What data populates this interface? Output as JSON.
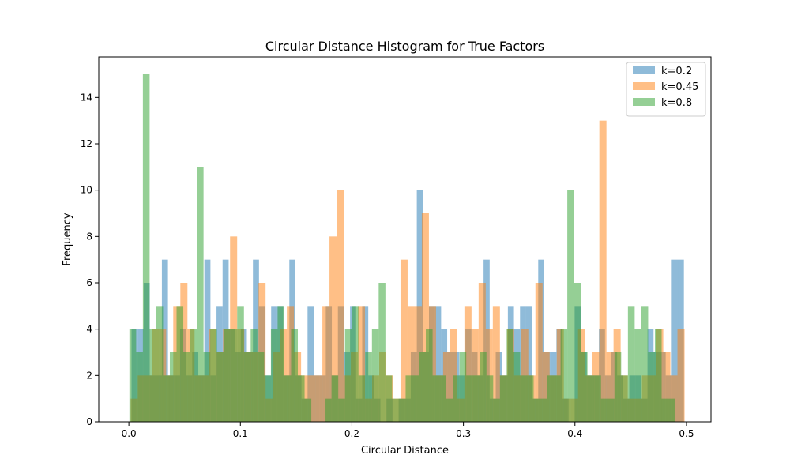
{
  "chart_data": {
    "type": "histogram",
    "title": "Circular Distance Histogram for True Factors",
    "xlabel": "Circular Distance",
    "ylabel": "Frequency",
    "xlim": [
      -0.027,
      0.522
    ],
    "ylim": [
      0,
      15.75
    ],
    "xticks": [
      0.0,
      0.1,
      0.2,
      0.3,
      0.4,
      0.5
    ],
    "xtick_labels": [
      "0.0",
      "0.1",
      "0.2",
      "0.3",
      "0.4",
      "0.5"
    ],
    "yticks": [
      0,
      2,
      4,
      6,
      8,
      10,
      12,
      14
    ],
    "ytick_labels": [
      "0",
      "2",
      "4",
      "6",
      "8",
      "10",
      "12",
      "14"
    ],
    "legend_position": "top-right",
    "grid": false,
    "bar_opacity": 0.5,
    "series": [
      {
        "name": "k=0.2",
        "color": "#1f77b4",
        "bin_start": 0.0024,
        "bin_end": 0.4977,
        "counts": [
          4,
          4,
          6,
          2,
          2,
          7,
          2,
          2,
          4,
          2,
          3,
          2,
          7,
          2,
          5,
          7,
          4,
          3,
          4,
          3,
          7,
          5,
          2,
          5,
          5,
          2,
          7,
          2,
          1,
          5,
          2,
          2,
          5,
          2,
          5,
          3,
          5,
          1,
          5,
          2,
          1,
          0,
          1,
          0,
          1,
          1,
          3,
          10,
          3,
          5,
          5,
          4,
          3,
          3,
          2,
          4,
          3,
          2,
          7,
          1,
          3,
          2,
          5,
          4,
          5,
          5,
          1,
          7,
          3,
          3,
          4,
          1,
          0,
          5,
          3,
          2,
          2,
          4,
          2,
          3,
          2,
          1,
          2,
          2,
          1,
          4,
          3,
          3,
          2,
          7,
          7
        ]
      },
      {
        "name": "k=0.45",
        "color": "#ff7f0e",
        "bin_start": 0.0016,
        "bin_end": 0.4983,
        "counts": [
          1,
          2,
          2,
          4,
          4,
          2,
          5,
          6,
          4,
          2,
          2,
          4,
          3,
          4,
          8,
          4,
          3,
          3,
          6,
          1,
          3,
          4,
          5,
          3,
          2,
          2,
          2,
          5,
          8,
          10,
          2,
          3,
          5,
          1,
          2,
          3,
          2,
          1,
          7,
          5,
          5,
          9,
          5,
          2,
          3,
          4,
          1,
          5,
          4,
          6,
          4,
          5,
          2,
          4,
          2,
          4,
          2,
          6,
          3,
          2,
          4,
          1,
          1,
          4,
          2,
          3,
          13,
          3,
          4,
          2,
          1,
          1,
          2,
          2,
          4,
          3,
          2,
          4
        ]
      },
      {
        "name": "k=0.8",
        "color": "#2ca02c",
        "bin_start": 0.0005,
        "bin_end": 0.4898,
        "counts": [
          4,
          3,
          15,
          4,
          5,
          2,
          3,
          5,
          3,
          4,
          11,
          3,
          4,
          3,
          4,
          4,
          5,
          3,
          4,
          3,
          2,
          4,
          5,
          2,
          4,
          2,
          1,
          0,
          0,
          1,
          2,
          1,
          4,
          5,
          2,
          3,
          4,
          6,
          2,
          1,
          1,
          2,
          2,
          3,
          4,
          2,
          2,
          1,
          2,
          3,
          2,
          2,
          3,
          2,
          1,
          2,
          4,
          3,
          2,
          2,
          1,
          1,
          2,
          2,
          4,
          10,
          6,
          3,
          2,
          2,
          1,
          1,
          3,
          2,
          5,
          4,
          5,
          3,
          4,
          1,
          1
        ]
      }
    ]
  }
}
